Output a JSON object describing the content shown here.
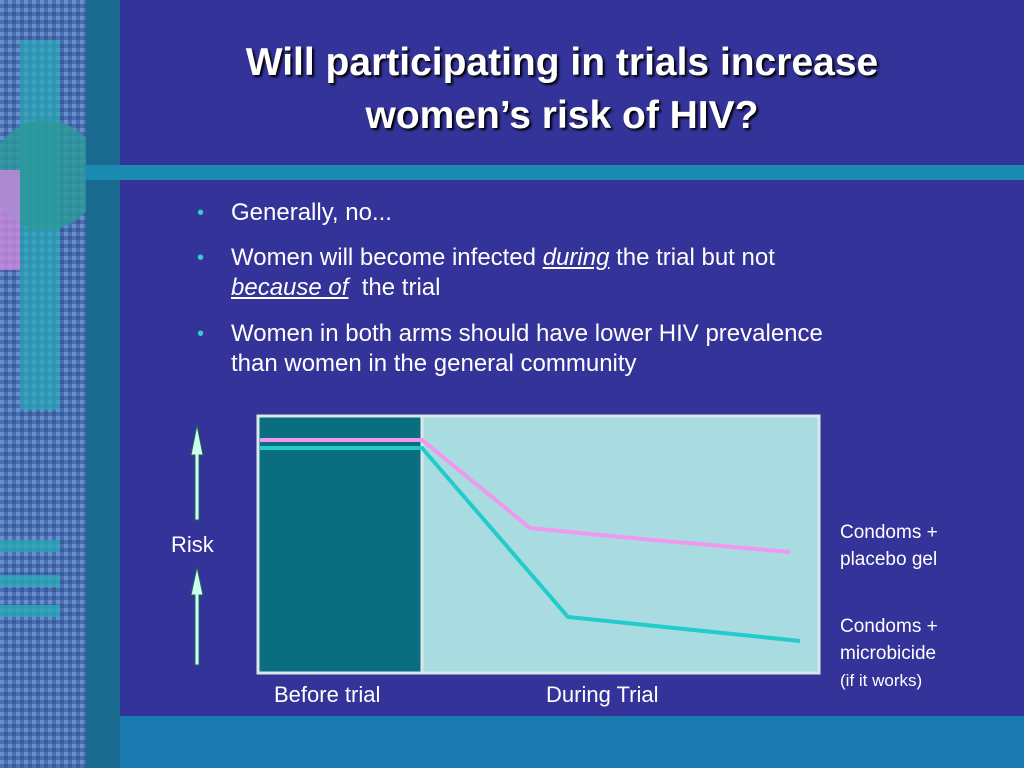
{
  "title": [
    "Will participating in trials increase",
    "women’s risk of HIV?"
  ],
  "bullets": [
    [
      "Generally, no..."
    ],
    [
      "Women will become infected",
      "during",
      "the trial but not",
      "because of",
      "the trial"
    ],
    [
      "Women in both arms should have lower HIV prevalence",
      "than women in the general community"
    ]
  ],
  "diagram": {
    "y_label": "Risk",
    "x_labels": [
      "Before trial",
      "During Trial"
    ],
    "series": [
      {
        "name": [
          "Condoms +",
          "placebo gel"
        ]
      },
      {
        "name": [
          "Condoms +",
          "microbicide"
        ],
        "note": "(if it works)"
      }
    ]
  }
}
